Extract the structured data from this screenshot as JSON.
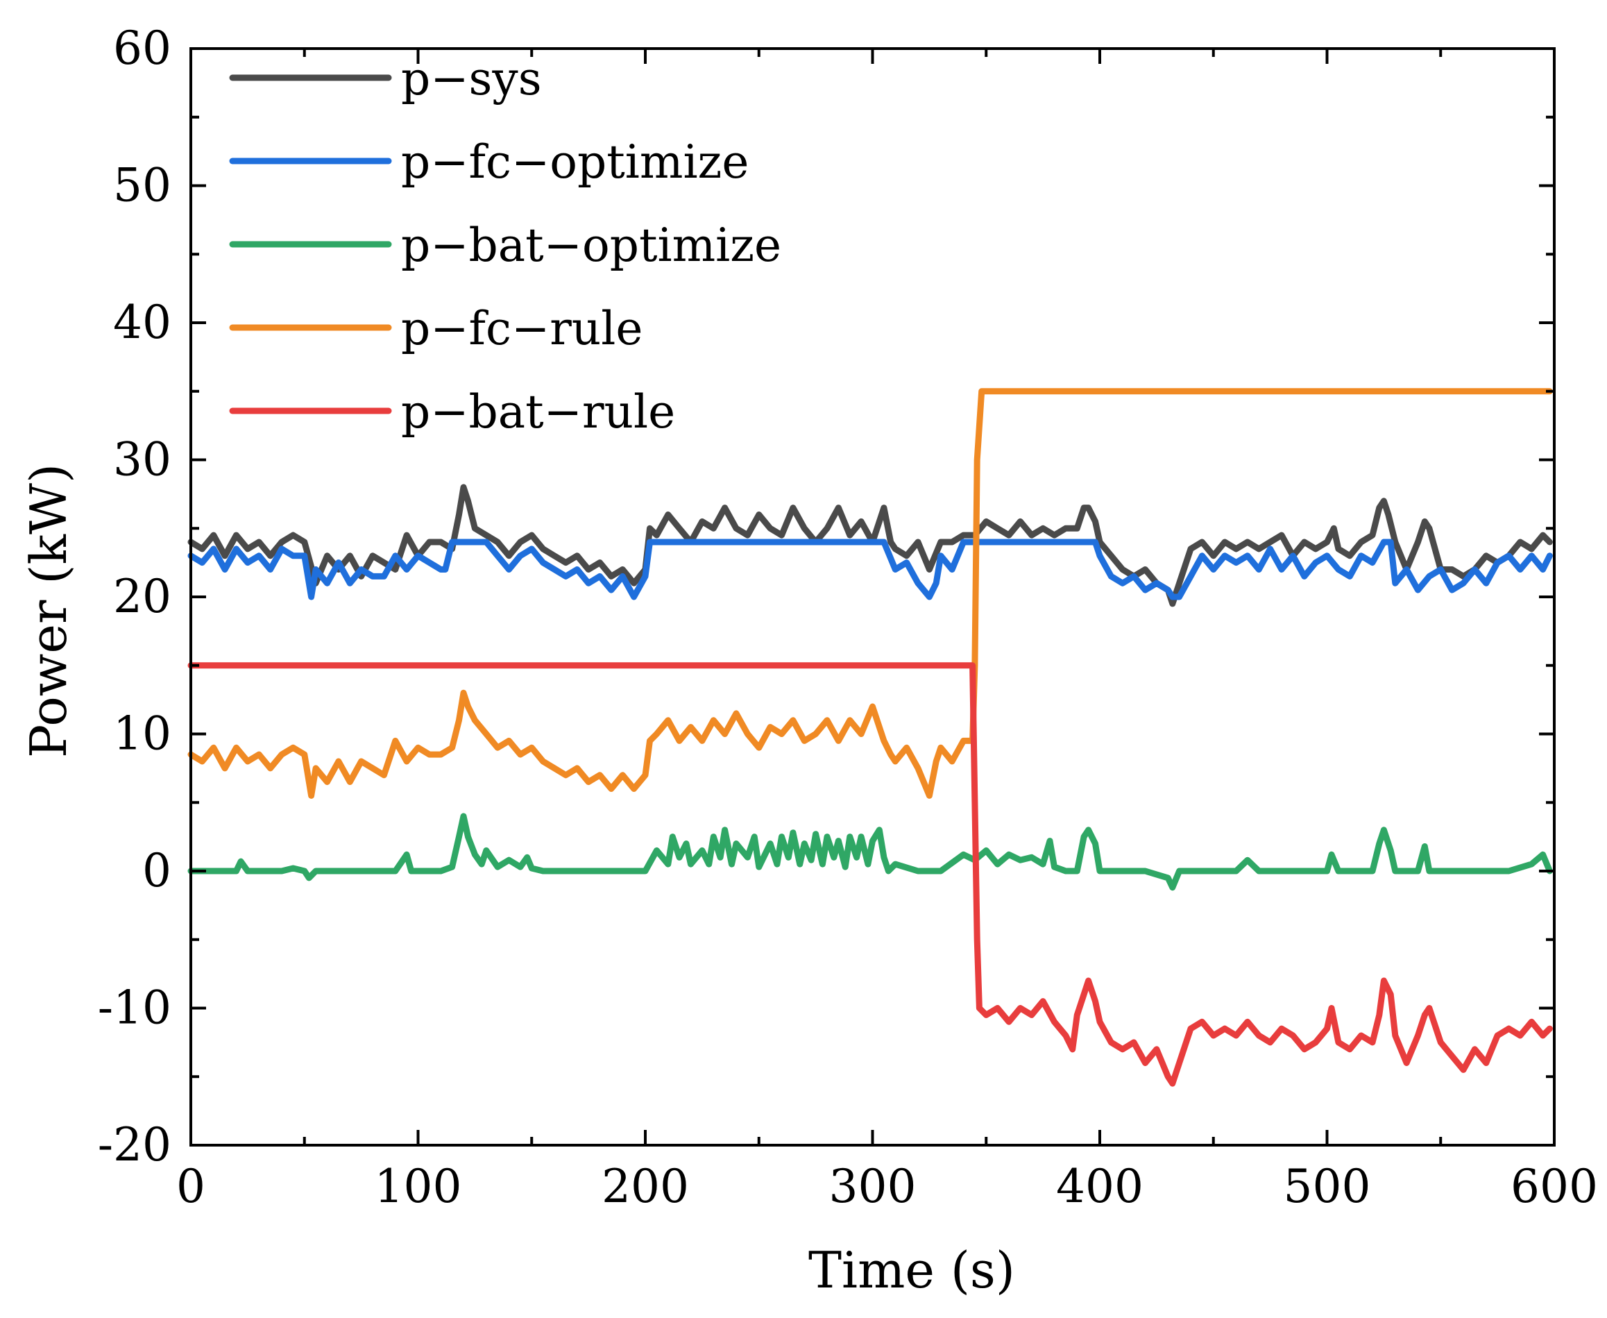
{
  "chart_data": {
    "type": "line",
    "title": "",
    "xlabel": "Time (s)",
    "ylabel": "Power (kW)",
    "xlim": [
      0,
      600
    ],
    "ylim": [
      -20,
      60
    ],
    "xticks": [
      0,
      100,
      200,
      300,
      400,
      500,
      600
    ],
    "yticks": [
      -20,
      -10,
      0,
      10,
      20,
      30,
      40,
      50,
      60
    ],
    "xtick_labels": [
      "0",
      "100",
      "200",
      "300",
      "400",
      "500",
      "600"
    ],
    "ytick_labels": [
      "-20",
      "-10",
      "0",
      "10",
      "20",
      "30",
      "40",
      "50",
      "60"
    ],
    "grid": false,
    "legend_position": "top-left",
    "series": [
      {
        "name": "p−sys",
        "color": "#4a4a4a",
        "x": [
          0,
          5,
          10,
          15,
          20,
          25,
          30,
          35,
          40,
          45,
          50,
          55,
          60,
          65,
          70,
          75,
          80,
          85,
          90,
          95,
          100,
          105,
          110,
          115,
          118,
          120,
          122,
          125,
          130,
          135,
          140,
          145,
          150,
          155,
          160,
          165,
          170,
          175,
          180,
          185,
          190,
          195,
          200,
          202,
          205,
          210,
          215,
          220,
          225,
          230,
          235,
          240,
          245,
          250,
          255,
          260,
          265,
          270,
          275,
          280,
          285,
          290,
          295,
          300,
          305,
          308,
          310,
          315,
          320,
          325,
          330,
          335,
          340,
          345,
          350,
          355,
          360,
          365,
          370,
          375,
          380,
          385,
          390,
          393,
          395,
          398,
          400,
          405,
          410,
          415,
          420,
          425,
          430,
          432,
          435,
          440,
          445,
          450,
          455,
          460,
          465,
          470,
          475,
          480,
          485,
          490,
          495,
          500,
          503,
          505,
          510,
          515,
          520,
          523,
          525,
          527,
          530,
          535,
          540,
          543,
          545,
          550,
          555,
          560,
          565,
          570,
          575,
          580,
          585,
          590,
          595,
          598
        ],
        "values": [
          24,
          23.5,
          24.5,
          23,
          24.5,
          23.5,
          24,
          23,
          24,
          24.5,
          24,
          21,
          23,
          22,
          23,
          21.5,
          23,
          22.5,
          22,
          24.5,
          23,
          24,
          24,
          23.5,
          26,
          28,
          27,
          25,
          24.5,
          24,
          23,
          24,
          24.5,
          23.5,
          23,
          22.5,
          23,
          22,
          22.5,
          21.5,
          22,
          21,
          22,
          25,
          24.5,
          26,
          25,
          24,
          25.5,
          25,
          26.5,
          25,
          24.5,
          26,
          25,
          24.5,
          26.5,
          25,
          24,
          25,
          26.5,
          24.5,
          25.5,
          24,
          26.5,
          24,
          23.5,
          23,
          24,
          22,
          24,
          24,
          24.5,
          24.5,
          25.5,
          25,
          24.5,
          25.5,
          24.5,
          25,
          24.5,
          25,
          25,
          26.5,
          26.5,
          25.5,
          24,
          23,
          22,
          21.5,
          22,
          21,
          20.5,
          19.5,
          21,
          23.5,
          24,
          23,
          24,
          23.5,
          24,
          23.5,
          24,
          24.5,
          23,
          24,
          23.5,
          24,
          25,
          23.5,
          23,
          24,
          24.5,
          26.5,
          27,
          26,
          24,
          22,
          24,
          25.5,
          25,
          22,
          22,
          21.5,
          22,
          23,
          22.5,
          23,
          24,
          23.5,
          24.5,
          24
        ]
      },
      {
        "name": "p−fc−optimize",
        "color": "#1f6fdc",
        "x": [
          0,
          5,
          10,
          15,
          20,
          25,
          30,
          35,
          40,
          45,
          50,
          53,
          55,
          60,
          65,
          70,
          75,
          80,
          85,
          90,
          95,
          100,
          105,
          110,
          112,
          115,
          120,
          125,
          130,
          135,
          140,
          145,
          150,
          155,
          160,
          165,
          170,
          175,
          180,
          185,
          190,
          195,
          200,
          202,
          205,
          210,
          300,
          305,
          310,
          315,
          320,
          325,
          328,
          330,
          335,
          340,
          345,
          350,
          390,
          395,
          398,
          400,
          405,
          410,
          415,
          420,
          425,
          430,
          432,
          435,
          440,
          445,
          450,
          455,
          460,
          465,
          470,
          475,
          480,
          485,
          490,
          495,
          500,
          505,
          510,
          515,
          520,
          525,
          528,
          530,
          535,
          540,
          545,
          550,
          555,
          560,
          565,
          570,
          575,
          580,
          585,
          590,
          595,
          598
        ],
        "values": [
          23,
          22.5,
          23.5,
          22,
          23.5,
          22.5,
          23,
          22,
          23.5,
          23,
          23,
          20,
          22,
          21,
          22.5,
          21,
          22,
          21.5,
          21.5,
          23,
          22,
          23,
          22.5,
          22,
          22,
          24,
          24,
          24,
          24,
          23,
          22,
          23,
          23.5,
          22.5,
          22,
          21.5,
          22,
          21,
          21.5,
          20.5,
          21.5,
          20,
          21.5,
          24,
          24,
          24,
          24,
          24,
          22,
          22.5,
          21,
          20,
          21,
          23,
          22,
          24,
          24,
          24,
          24,
          24,
          24,
          23,
          21.5,
          21,
          21.5,
          20.5,
          21,
          20.5,
          20,
          20,
          21.5,
          23,
          22,
          23,
          22.5,
          23,
          22,
          23.5,
          22,
          23,
          21.5,
          22.5,
          23,
          22,
          21.5,
          23,
          22.5,
          24,
          24,
          21,
          22,
          20.5,
          21.5,
          22,
          20.5,
          21,
          22,
          21,
          22.5,
          23,
          22,
          23,
          22,
          23
        ]
      },
      {
        "name": "p−bat−optimize",
        "color": "#2fa765",
        "x": [
          0,
          10,
          20,
          22,
          25,
          30,
          40,
          45,
          50,
          52,
          55,
          60,
          70,
          80,
          90,
          95,
          97,
          100,
          110,
          115,
          118,
          120,
          122,
          125,
          128,
          130,
          135,
          140,
          145,
          148,
          150,
          155,
          160,
          170,
          180,
          190,
          200,
          205,
          210,
          212,
          215,
          218,
          220,
          225,
          228,
          230,
          233,
          235,
          238,
          240,
          245,
          248,
          250,
          255,
          258,
          260,
          263,
          265,
          268,
          270,
          273,
          275,
          278,
          280,
          283,
          285,
          288,
          290,
          293,
          295,
          298,
          300,
          303,
          305,
          307,
          310,
          320,
          325,
          330,
          340,
          345,
          350,
          355,
          360,
          365,
          370,
          375,
          378,
          380,
          385,
          390,
          393,
          395,
          398,
          400,
          405,
          410,
          420,
          430,
          432,
          435,
          440,
          450,
          460,
          465,
          470,
          480,
          490,
          500,
          502,
          505,
          510,
          520,
          523,
          525,
          528,
          530,
          540,
          543,
          545,
          550,
          560,
          570,
          580,
          590,
          595,
          598
        ],
        "values": [
          0,
          0,
          0,
          0.7,
          0,
          0,
          0,
          0.2,
          0,
          -0.5,
          0,
          0,
          0,
          0,
          0,
          1.2,
          0,
          0,
          0,
          0.3,
          2.5,
          4,
          2.5,
          1.2,
          0.5,
          1.5,
          0.3,
          0.8,
          0.3,
          1,
          0.2,
          0,
          0,
          0,
          0,
          0,
          0,
          1.5,
          0.5,
          2.5,
          1,
          2,
          0.5,
          1.5,
          0.5,
          2.5,
          1,
          3,
          0.5,
          2,
          1,
          2.5,
          0.3,
          2,
          0.5,
          2.5,
          1,
          2.8,
          0.5,
          2,
          0.8,
          2.7,
          0.5,
          2.5,
          1,
          2.2,
          0.3,
          2.5,
          1,
          2.5,
          0.5,
          2.2,
          3,
          1,
          0,
          0.5,
          0,
          0,
          0,
          1.2,
          0.8,
          1.5,
          0.5,
          1.2,
          0.8,
          1,
          0.5,
          2.2,
          0.3,
          0,
          0,
          2.5,
          3,
          2,
          0,
          0,
          0,
          0,
          -0.5,
          -1.2,
          0,
          0,
          0,
          0,
          0.8,
          0,
          0,
          0,
          0,
          1.2,
          0,
          0,
          0,
          2,
          3,
          1.5,
          0,
          0,
          1.8,
          0,
          0,
          0,
          0,
          0,
          0.5,
          1.2,
          0
        ]
      },
      {
        "name": "p−fc−rule",
        "color": "#f08a24",
        "x": [
          0,
          5,
          10,
          15,
          20,
          25,
          30,
          35,
          40,
          45,
          50,
          53,
          55,
          60,
          65,
          70,
          75,
          80,
          85,
          90,
          95,
          100,
          105,
          110,
          115,
          118,
          120,
          122,
          125,
          130,
          135,
          140,
          145,
          150,
          155,
          160,
          165,
          170,
          175,
          180,
          185,
          190,
          195,
          200,
          202,
          205,
          210,
          215,
          220,
          225,
          230,
          235,
          240,
          245,
          250,
          255,
          260,
          265,
          270,
          275,
          280,
          285,
          290,
          295,
          300,
          305,
          308,
          310,
          315,
          320,
          325,
          328,
          330,
          335,
          340,
          344,
          345,
          346,
          348,
          350,
          360,
          400,
          500,
          598
        ],
        "values": [
          8.5,
          8,
          9,
          7.5,
          9,
          8,
          8.5,
          7.5,
          8.5,
          9,
          8.5,
          5.5,
          7.5,
          6.5,
          8,
          6.5,
          8,
          7.5,
          7,
          9.5,
          8,
          9,
          8.5,
          8.5,
          9,
          11,
          13,
          12,
          11,
          10,
          9,
          9.5,
          8.5,
          9,
          8,
          7.5,
          7,
          7.5,
          6.5,
          7,
          6,
          7,
          6,
          7,
          9.5,
          10,
          11,
          9.5,
          10.5,
          9.5,
          11,
          10,
          11.5,
          10,
          9,
          10.5,
          10,
          11,
          9.5,
          10,
          11,
          9.5,
          11,
          10,
          12,
          9.5,
          8.5,
          8,
          9,
          7.5,
          5.5,
          8,
          9,
          8,
          9.5,
          9.5,
          15,
          30,
          35,
          35,
          35,
          35,
          35,
          35
        ]
      },
      {
        "name": "p−bat−rule",
        "color": "#e83d3d",
        "x": [
          0,
          100,
          200,
          300,
          344,
          345,
          346,
          347,
          350,
          355,
          360,
          365,
          370,
          375,
          380,
          385,
          388,
          390,
          393,
          395,
          398,
          400,
          405,
          410,
          415,
          420,
          425,
          430,
          432,
          435,
          440,
          445,
          450,
          455,
          460,
          465,
          470,
          475,
          480,
          485,
          490,
          495,
          500,
          502,
          505,
          510,
          515,
          520,
          523,
          525,
          528,
          530,
          535,
          540,
          543,
          545,
          550,
          555,
          560,
          565,
          570,
          575,
          580,
          585,
          590,
          595,
          598
        ],
        "values": [
          15,
          15,
          15,
          15,
          15,
          5,
          -5,
          -10,
          -10.5,
          -10,
          -11,
          -10,
          -10.5,
          -9.5,
          -11,
          -12,
          -13,
          -10.5,
          -9,
          -8,
          -9.5,
          -11,
          -12.5,
          -13,
          -12.5,
          -14,
          -13,
          -15,
          -15.5,
          -14,
          -11.5,
          -11,
          -12,
          -11.5,
          -12,
          -11,
          -12,
          -12.5,
          -11.5,
          -12,
          -13,
          -12.5,
          -11.5,
          -10,
          -12.5,
          -13,
          -12,
          -12.5,
          -10.5,
          -8,
          -9,
          -12,
          -14,
          -12,
          -10.5,
          -10,
          -12.5,
          -13.5,
          -14.5,
          -13,
          -14,
          -12,
          -11.5,
          -12,
          -11,
          -12,
          -11.5
        ]
      }
    ]
  }
}
